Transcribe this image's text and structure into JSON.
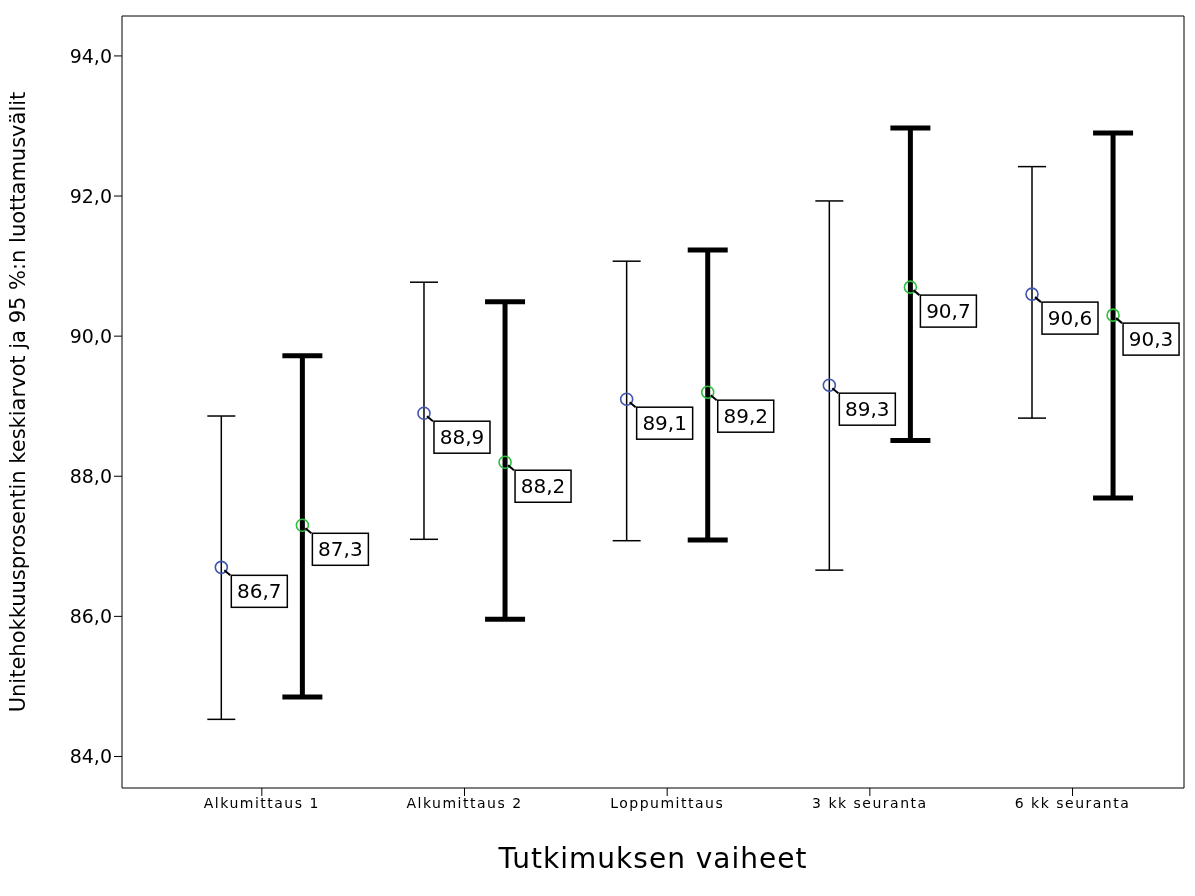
{
  "chart_data": {
    "type": "scatter",
    "xlabel": "Tutkimuksen vaiheet",
    "ylabel": "Unitehokkuusprosentin keskiarvot ja 95 %:n luottamusvälit",
    "categories": [
      "Alkumittaus 1",
      "Alkumittaus 2",
      "Loppumittaus",
      "3 kk seuranta",
      "6 kk seuranta"
    ],
    "series": [
      {
        "color": "#3f56b0",
        "values": [
          86.7,
          88.9,
          89.1,
          89.3,
          90.6
        ],
        "errors": [
          [
            84.53,
            88.86
          ],
          [
            87.1,
            90.77
          ],
          [
            87.08,
            91.07
          ],
          [
            86.66,
            91.93
          ],
          [
            88.83,
            92.42
          ]
        ],
        "value_labels": [
          "86,7",
          "88,9",
          "89,1",
          "89,3",
          "90,6"
        ]
      },
      {
        "color": "#2fbf3f",
        "values": [
          87.3,
          88.2,
          89.2,
          90.7,
          90.3
        ],
        "errors": [
          [
            84.85,
            89.72
          ],
          [
            85.96,
            90.49
          ],
          [
            87.09,
            91.23
          ],
          [
            88.51,
            92.97
          ],
          [
            87.69,
            92.9
          ]
        ],
        "value_labels": [
          "87,3",
          "88,2",
          "89,2",
          "90,7",
          "90,3"
        ]
      }
    ],
    "ylim": [
      83.55,
      94.57
    ],
    "yticks": [
      {
        "value": 84,
        "label": "84,0"
      },
      {
        "value": 86,
        "label": "86,0"
      },
      {
        "value": 88,
        "label": "88,0"
      },
      {
        "value": 90,
        "label": "90,0"
      },
      {
        "value": 92,
        "label": "92,0"
      },
      {
        "value": 94,
        "label": "94,0"
      }
    ],
    "marker": "circle",
    "grid": false,
    "legend": false
  }
}
